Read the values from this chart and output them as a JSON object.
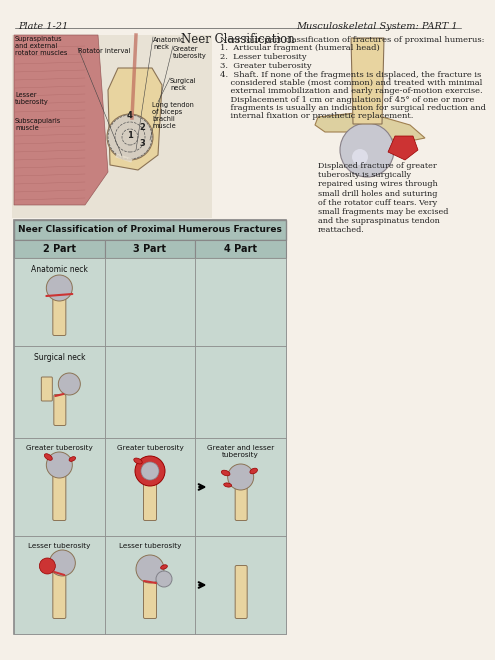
{
  "plate_label": "Plate 1-21",
  "header_right": "Musculoskeletal System: PART 1",
  "title": "Neer Classification",
  "section_title": "Neer Classification of Proximal Humerous Fractures",
  "col_headers": [
    "2 Part",
    "3 Part",
    "4 Part"
  ],
  "row_labels": [
    "Anatomic neck",
    "Surgical neck",
    "Greater tuberosity",
    "Lesser tuberosity"
  ],
  "neer_text_title": "Neer four-part classification of fractures of proximal humerus:",
  "neer_items_simple": [
    "1.  Articular fragment (humeral head)",
    "2.  Lesser tuberosity",
    "3.  Greater tuberosity"
  ],
  "item4_lines": [
    "4.  Shaft. If none of the fragments is displaced, the fracture is",
    "    considered stable (most common) and treated with minimal",
    "    external immobilization and early range-of-motion exercise.",
    "    Displacement of 1 cm or angulation of 45° of one or more",
    "    fragments is usually an indication for surgical reduction and",
    "    internal fixation or prosthetic replacement."
  ],
  "displaced_text": "Displaced fracture of greater\ntuberosity is surgically\nrepaired using wires through\nsmall drill holes and suturing\nof the rotator cuff tears. Very\nsmall fragments may be excised\nand the supraspinatus tendon\nreattached.",
  "bg_color": "#f5f0e8",
  "table_bg": "#c8d8d0",
  "table_header_bg": "#a8c0b8",
  "border_color": "#888888",
  "text_color": "#222222",
  "bone_color": "#e8d4a0",
  "red_color": "#cc3333",
  "gray_color": "#b8b8c0"
}
